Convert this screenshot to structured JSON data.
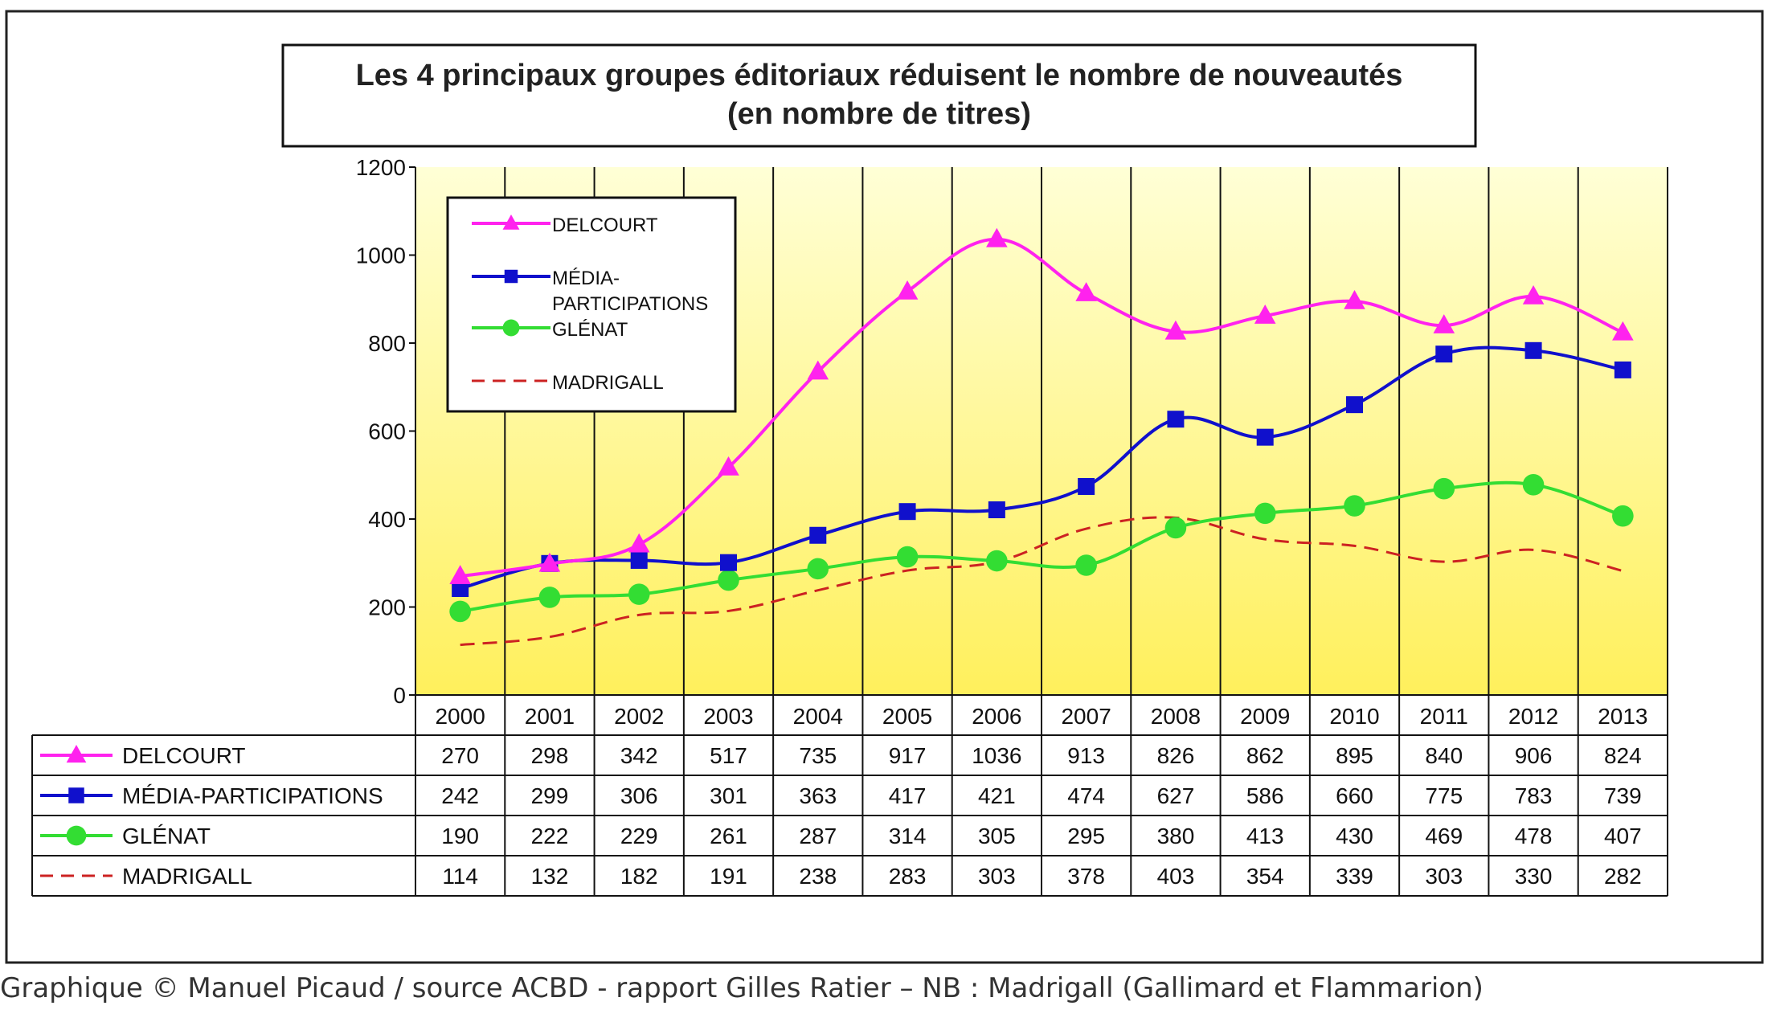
{
  "chart_data": {
    "type": "line",
    "title": "Les 4 principaux groupes éditoriaux réduisent le nombre de nouveautés",
    "subtitle": "(en nombre de titres)",
    "x": [
      "2000",
      "2001",
      "2002",
      "2003",
      "2004",
      "2005",
      "2006",
      "2007",
      "2008",
      "2009",
      "2010",
      "2011",
      "2012",
      "2013"
    ],
    "ylim": [
      0,
      1200
    ],
    "yticks": [
      "0",
      "200",
      "400",
      "600",
      "800",
      "1000",
      "1200"
    ],
    "grid": "vertical",
    "legend": "top-left",
    "plot_background": [
      "#ffffd6",
      "#fff05c"
    ],
    "series": [
      {
        "name": "DELCOURT",
        "legend_label": [
          "DELCOURT"
        ],
        "color": "#ff22ee",
        "marker": "triangle",
        "dash": "solid",
        "values": [
          270,
          298,
          342,
          517,
          735,
          917,
          1036,
          913,
          826,
          862,
          895,
          840,
          906,
          824
        ]
      },
      {
        "name": "MÉDIA-PARTICIPATIONS",
        "legend_label": [
          "MÉDIA-",
          "PARTICIPATIONS"
        ],
        "color": "#1010cc",
        "marker": "square",
        "dash": "solid",
        "values": [
          242,
          299,
          306,
          301,
          363,
          417,
          421,
          474,
          627,
          586,
          660,
          775,
          783,
          739
        ]
      },
      {
        "name": "GLÉNAT",
        "legend_label": [
          "GLÉNAT"
        ],
        "color": "#33dd33",
        "marker": "circle",
        "dash": "solid",
        "values": [
          190,
          222,
          229,
          261,
          287,
          314,
          305,
          295,
          380,
          413,
          430,
          469,
          478,
          407
        ]
      },
      {
        "name": "MADRIGALL",
        "legend_label": [
          "MADRIGALL"
        ],
        "color": "#cc2222",
        "marker": "none",
        "dash": "dashed",
        "values": [
          114,
          132,
          182,
          191,
          238,
          283,
          303,
          378,
          403,
          354,
          339,
          303,
          330,
          282
        ]
      }
    ]
  },
  "caption": "Graphique © Manuel Picaud / source ACBD - rapport Gilles Ratier – NB : Madrigall (Gallimard et Flammarion)"
}
